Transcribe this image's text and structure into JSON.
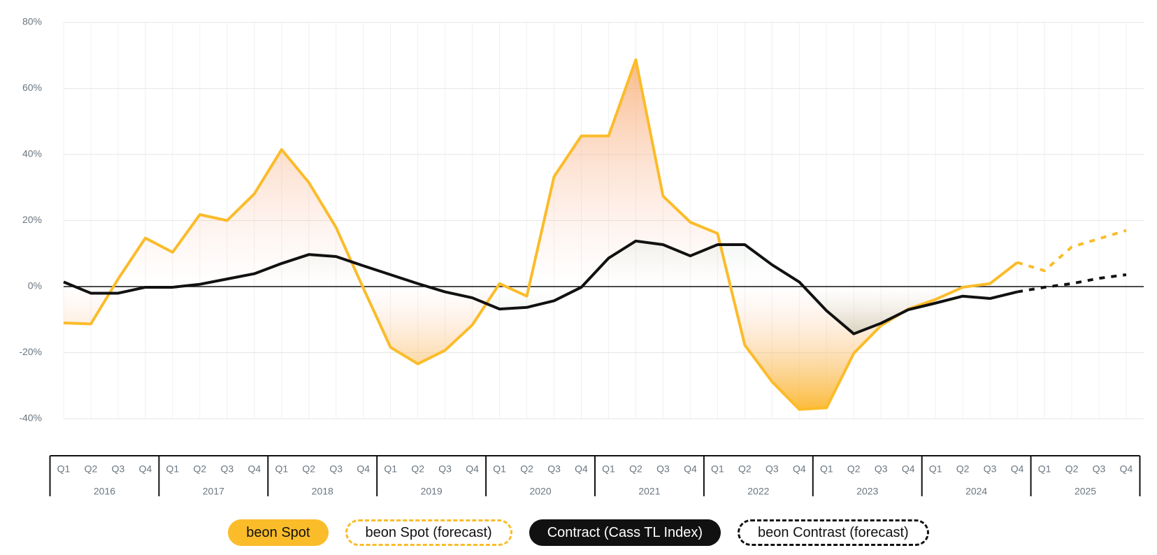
{
  "chart_data": {
    "type": "line",
    "categories": [
      "Q1",
      "Q2",
      "Q3",
      "Q4",
      "Q1",
      "Q2",
      "Q3",
      "Q4",
      "Q1",
      "Q2",
      "Q3",
      "Q4",
      "Q1",
      "Q2",
      "Q3",
      "Q4",
      "Q1",
      "Q2",
      "Q3",
      "Q4",
      "Q1",
      "Q2",
      "Q3",
      "Q4",
      "Q1",
      "Q2",
      "Q3",
      "Q4",
      "Q1",
      "Q2",
      "Q3",
      "Q4",
      "Q1",
      "Q2",
      "Q3",
      "Q4",
      "Q1",
      "Q2",
      "Q3",
      "Q4"
    ],
    "years": [
      "2016",
      "2017",
      "2018",
      "2019",
      "2020",
      "2021",
      "2022",
      "2023",
      "2024",
      "2025"
    ],
    "ylim": [
      -40,
      80
    ],
    "yticks": [
      {
        "value": -40,
        "label": "-40%"
      },
      {
        "value": -20,
        "label": "-20%"
      },
      {
        "value": 0,
        "label": "0%"
      },
      {
        "value": 20,
        "label": "20%"
      },
      {
        "value": 40,
        "label": "40%"
      },
      {
        "value": 60,
        "label": "60%"
      },
      {
        "value": 80,
        "label": "80%"
      }
    ],
    "grid": true,
    "series": [
      {
        "name": "beon Spot",
        "color": "#fbbc2a",
        "dashed": false,
        "area": true,
        "values": [
          -11,
          -11.3,
          2.3,
          14.7,
          10.4,
          21.8,
          20,
          28.1,
          41.5,
          31.5,
          17.9,
          -0.5,
          -18.4,
          -23.4,
          -19.3,
          -11.6,
          0.9,
          -2.9,
          33.3,
          45.6,
          45.6,
          68.7,
          27.4,
          19.5,
          16.1,
          -17.7,
          -28.8,
          -37.2,
          -36.7,
          -20.2,
          -11.8,
          -6.8,
          -3.9,
          -0.2,
          0.9,
          7.3,
          null,
          null,
          null,
          null
        ]
      },
      {
        "name": "beon Spot (forecast)",
        "color": "#fbbc2a",
        "dashed": true,
        "area": false,
        "values": [
          null,
          null,
          null,
          null,
          null,
          null,
          null,
          null,
          null,
          null,
          null,
          null,
          null,
          null,
          null,
          null,
          null,
          null,
          null,
          null,
          null,
          null,
          null,
          null,
          null,
          null,
          null,
          null,
          null,
          null,
          null,
          null,
          null,
          null,
          null,
          7.3,
          4.8,
          12,
          14.5,
          17
        ]
      },
      {
        "name": "Contract (Cass TL Index)",
        "color": "#111111",
        "dashed": false,
        "area": true,
        "values": [
          1.4,
          -2,
          -2,
          -0.2,
          -0.2,
          0.7,
          2.3,
          3.9,
          7,
          9.7,
          9.1,
          6.3,
          3.6,
          0.9,
          -1.6,
          -3.4,
          -6.8,
          -6.3,
          -4.3,
          -0.2,
          8.6,
          13.8,
          12.7,
          9.3,
          12.7,
          12.7,
          6.6,
          1.4,
          -7.3,
          -14.3,
          -11.1,
          -7,
          -5,
          -2.9,
          -3.6,
          -1.6,
          null,
          null,
          null,
          null
        ]
      },
      {
        "name": "beon Contrast (forecast)",
        "color": "#111111",
        "dashed": true,
        "area": false,
        "values": [
          null,
          null,
          null,
          null,
          null,
          null,
          null,
          null,
          null,
          null,
          null,
          null,
          null,
          null,
          null,
          null,
          null,
          null,
          null,
          null,
          null,
          null,
          null,
          null,
          null,
          null,
          null,
          null,
          null,
          null,
          null,
          null,
          null,
          null,
          null,
          -1.6,
          -0.2,
          0.9,
          2.5,
          3.6
        ]
      }
    ]
  }
}
